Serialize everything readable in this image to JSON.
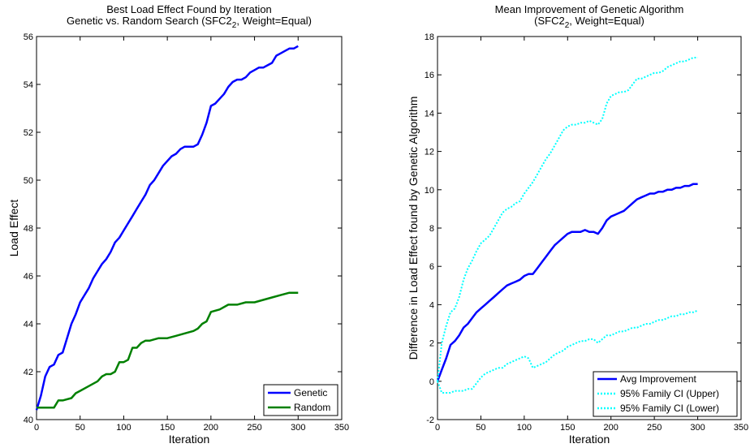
{
  "chart_data": [
    {
      "type": "line",
      "title": [
        "Best Load Effect Found by Iteration",
        "Genetic vs. Random Search (SFC2",
        "2",
        ", Weight=Equal)"
      ],
      "xlabel": "Iteration",
      "ylabel": "Load Effect",
      "xlim": [
        0,
        350
      ],
      "ylim": [
        40,
        56
      ],
      "xticks": [
        "0",
        "50",
        "100",
        "150",
        "200",
        "250",
        "300",
        "350"
      ],
      "yticks": [
        "40",
        "42",
        "44",
        "46",
        "48",
        "50",
        "52",
        "54",
        "56"
      ],
      "legend": "bottom-right",
      "series": [
        {
          "name": "Genetic",
          "color": "#0000ff",
          "style": "solid",
          "x": [
            0,
            5,
            10,
            15,
            20,
            25,
            30,
            35,
            40,
            45,
            50,
            55,
            60,
            65,
            70,
            75,
            80,
            85,
            90,
            95,
            100,
            105,
            110,
            115,
            120,
            125,
            130,
            135,
            140,
            145,
            150,
            155,
            160,
            165,
            170,
            175,
            180,
            185,
            190,
            195,
            200,
            205,
            210,
            215,
            220,
            225,
            230,
            235,
            240,
            245,
            250,
            255,
            260,
            265,
            270,
            275,
            280,
            285,
            290,
            295,
            300
          ],
          "y": [
            40.4,
            41.0,
            41.8,
            42.2,
            42.3,
            42.7,
            42.8,
            43.4,
            44.0,
            44.4,
            44.9,
            45.2,
            45.5,
            45.9,
            46.2,
            46.5,
            46.7,
            47.0,
            47.4,
            47.6,
            47.9,
            48.2,
            48.5,
            48.8,
            49.1,
            49.4,
            49.8,
            50.0,
            50.3,
            50.6,
            50.8,
            51.0,
            51.1,
            51.3,
            51.4,
            51.4,
            51.4,
            51.5,
            51.9,
            52.4,
            53.1,
            53.2,
            53.4,
            53.6,
            53.9,
            54.1,
            54.2,
            54.2,
            54.3,
            54.5,
            54.6,
            54.7,
            54.7,
            54.8,
            54.9,
            55.2,
            55.3,
            55.4,
            55.5,
            55.5,
            55.6
          ]
        },
        {
          "name": "Random",
          "color": "#008000",
          "style": "solid",
          "x": [
            0,
            10,
            20,
            25,
            30,
            40,
            45,
            50,
            60,
            70,
            75,
            80,
            85,
            90,
            95,
            100,
            105,
            110,
            115,
            120,
            125,
            130,
            140,
            150,
            160,
            170,
            180,
            185,
            190,
            195,
            200,
            210,
            220,
            230,
            240,
            250,
            260,
            270,
            280,
            290,
            300
          ],
          "y": [
            40.5,
            40.5,
            40.5,
            40.8,
            40.8,
            40.9,
            41.1,
            41.2,
            41.4,
            41.6,
            41.8,
            41.9,
            41.9,
            42.0,
            42.4,
            42.4,
            42.5,
            43.0,
            43.0,
            43.2,
            43.3,
            43.3,
            43.4,
            43.4,
            43.5,
            43.6,
            43.7,
            43.8,
            44.0,
            44.1,
            44.5,
            44.6,
            44.8,
            44.8,
            44.9,
            44.9,
            45.0,
            45.1,
            45.2,
            45.3,
            45.3
          ]
        }
      ]
    },
    {
      "type": "line",
      "title": [
        "Mean Improvement of Genetic Algorithm",
        "(SFC2",
        "2",
        ", Weight=Equal)"
      ],
      "xlabel": "Iteration",
      "ylabel": "Difference in Load Effect found by Genetic Algorithm",
      "xlim": [
        0,
        350
      ],
      "ylim": [
        -2,
        18
      ],
      "xticks": [
        "0",
        "50",
        "100",
        "150",
        "200",
        "250",
        "300",
        "350"
      ],
      "yticks": [
        "-2",
        "0",
        "2",
        "4",
        "6",
        "8",
        "10",
        "12",
        "14",
        "16",
        "18"
      ],
      "legend": "bottom-right",
      "series": [
        {
          "name": "Avg Improvement",
          "color": "#0000ff",
          "style": "solid",
          "x": [
            0,
            5,
            10,
            15,
            20,
            25,
            30,
            35,
            40,
            45,
            50,
            55,
            60,
            65,
            70,
            75,
            80,
            85,
            90,
            95,
            100,
            105,
            110,
            115,
            120,
            125,
            130,
            135,
            140,
            145,
            150,
            155,
            160,
            165,
            170,
            175,
            180,
            185,
            190,
            195,
            200,
            205,
            210,
            215,
            220,
            225,
            230,
            235,
            240,
            245,
            250,
            255,
            260,
            265,
            270,
            275,
            280,
            285,
            290,
            295,
            300
          ],
          "y": [
            0.0,
            0.6,
            1.2,
            1.9,
            2.1,
            2.4,
            2.8,
            3.0,
            3.3,
            3.6,
            3.8,
            4.0,
            4.2,
            4.4,
            4.6,
            4.8,
            5.0,
            5.1,
            5.2,
            5.3,
            5.5,
            5.6,
            5.6,
            5.9,
            6.2,
            6.5,
            6.8,
            7.1,
            7.3,
            7.5,
            7.7,
            7.8,
            7.8,
            7.8,
            7.9,
            7.8,
            7.8,
            7.7,
            8.0,
            8.4,
            8.6,
            8.7,
            8.8,
            8.9,
            9.1,
            9.3,
            9.5,
            9.6,
            9.7,
            9.8,
            9.8,
            9.9,
            9.9,
            10.0,
            10.0,
            10.1,
            10.1,
            10.2,
            10.2,
            10.3,
            10.3
          ]
        },
        {
          "name": "95% Family CI (Upper)",
          "color": "#00ffff",
          "style": "dotted",
          "x": [
            0,
            5,
            10,
            15,
            20,
            25,
            30,
            35,
            40,
            45,
            50,
            55,
            60,
            65,
            70,
            75,
            80,
            85,
            90,
            95,
            100,
            105,
            110,
            115,
            120,
            125,
            130,
            135,
            140,
            145,
            150,
            155,
            160,
            165,
            170,
            175,
            180,
            185,
            190,
            195,
            200,
            205,
            210,
            215,
            220,
            225,
            230,
            235,
            240,
            245,
            250,
            255,
            260,
            265,
            270,
            275,
            280,
            285,
            290,
            295,
            300
          ],
          "y": [
            0.0,
            2.0,
            2.9,
            3.6,
            3.8,
            4.4,
            5.3,
            5.9,
            6.3,
            6.8,
            7.2,
            7.4,
            7.6,
            8.0,
            8.4,
            8.8,
            9.0,
            9.1,
            9.3,
            9.4,
            9.8,
            10.1,
            10.4,
            10.8,
            11.2,
            11.6,
            11.9,
            12.3,
            12.7,
            13.1,
            13.3,
            13.4,
            13.4,
            13.5,
            13.5,
            13.6,
            13.5,
            13.4,
            13.7,
            14.5,
            14.9,
            15.0,
            15.1,
            15.1,
            15.2,
            15.5,
            15.8,
            15.8,
            15.9,
            16.0,
            16.1,
            16.1,
            16.2,
            16.4,
            16.5,
            16.6,
            16.7,
            16.7,
            16.8,
            16.9,
            16.9
          ]
        },
        {
          "name": "95% Family CI (Lower)",
          "color": "#00ffff",
          "style": "dotted",
          "x": [
            0,
            5,
            10,
            15,
            20,
            25,
            30,
            35,
            40,
            45,
            50,
            55,
            60,
            65,
            70,
            75,
            80,
            85,
            90,
            95,
            100,
            105,
            110,
            115,
            120,
            125,
            130,
            135,
            140,
            145,
            150,
            155,
            160,
            165,
            170,
            175,
            180,
            185,
            190,
            195,
            200,
            205,
            210,
            215,
            220,
            225,
            230,
            235,
            240,
            245,
            250,
            255,
            260,
            265,
            270,
            275,
            280,
            285,
            290,
            295,
            300
          ],
          "y": [
            0.0,
            -0.6,
            -0.6,
            -0.6,
            -0.5,
            -0.5,
            -0.5,
            -0.4,
            -0.4,
            -0.1,
            0.2,
            0.4,
            0.5,
            0.6,
            0.7,
            0.7,
            0.9,
            1.0,
            1.1,
            1.2,
            1.3,
            1.2,
            0.7,
            0.8,
            0.9,
            1.0,
            1.2,
            1.4,
            1.5,
            1.6,
            1.8,
            1.9,
            2.0,
            2.1,
            2.1,
            2.2,
            2.2,
            2.0,
            2.2,
            2.4,
            2.4,
            2.5,
            2.6,
            2.6,
            2.7,
            2.8,
            2.8,
            2.9,
            3.0,
            3.0,
            3.1,
            3.2,
            3.2,
            3.3,
            3.4,
            3.4,
            3.5,
            3.5,
            3.6,
            3.6,
            3.7
          ]
        }
      ]
    }
  ]
}
